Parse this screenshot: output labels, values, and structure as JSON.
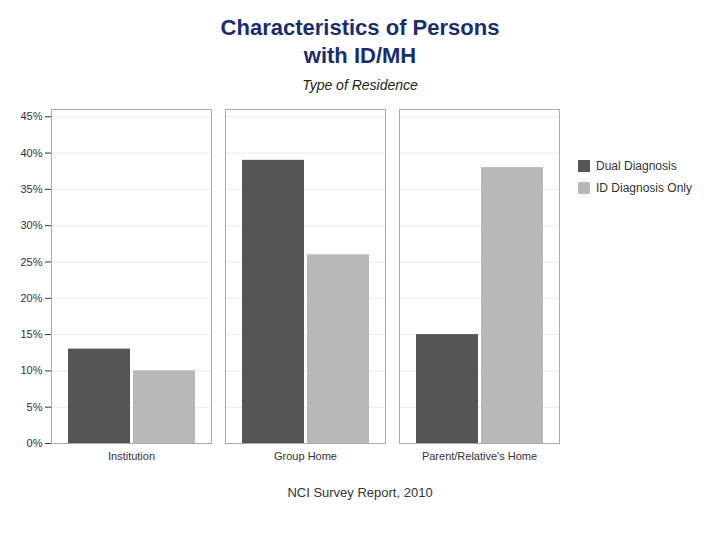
{
  "chart_data": {
    "type": "bar",
    "title": "Characteristics of Persons\nwith ID/MH",
    "subtitle": "Type of Residence",
    "caption": "NCI Survey Report, 2010",
    "categories": [
      "Institution",
      "Group Home",
      "Parent/Relative's Home"
    ],
    "series": [
      {
        "name": "Dual Diagnosis",
        "color": "#555555",
        "values": [
          0.13,
          0.39,
          0.15
        ]
      },
      {
        "name": "ID Diagnosis Only",
        "color": "#b8b8b8",
        "values": [
          0.1,
          0.26,
          0.38
        ]
      }
    ],
    "ylim": [
      0,
      0.46
    ],
    "yticks": [
      {
        "value": 0.0,
        "label": "0%"
      },
      {
        "value": 0.05,
        "label": "5%"
      },
      {
        "value": 0.1,
        "label": "10%"
      },
      {
        "value": 0.15,
        "label": "15%"
      },
      {
        "value": 0.2,
        "label": "20%"
      },
      {
        "value": 0.25,
        "label": "25%"
      },
      {
        "value": 0.3,
        "label": "30%"
      },
      {
        "value": 0.35,
        "label": "35%"
      },
      {
        "value": 0.4,
        "label": "40%"
      },
      {
        "value": 0.45,
        "label": "45%"
      }
    ],
    "grid": true,
    "legend": "right"
  }
}
